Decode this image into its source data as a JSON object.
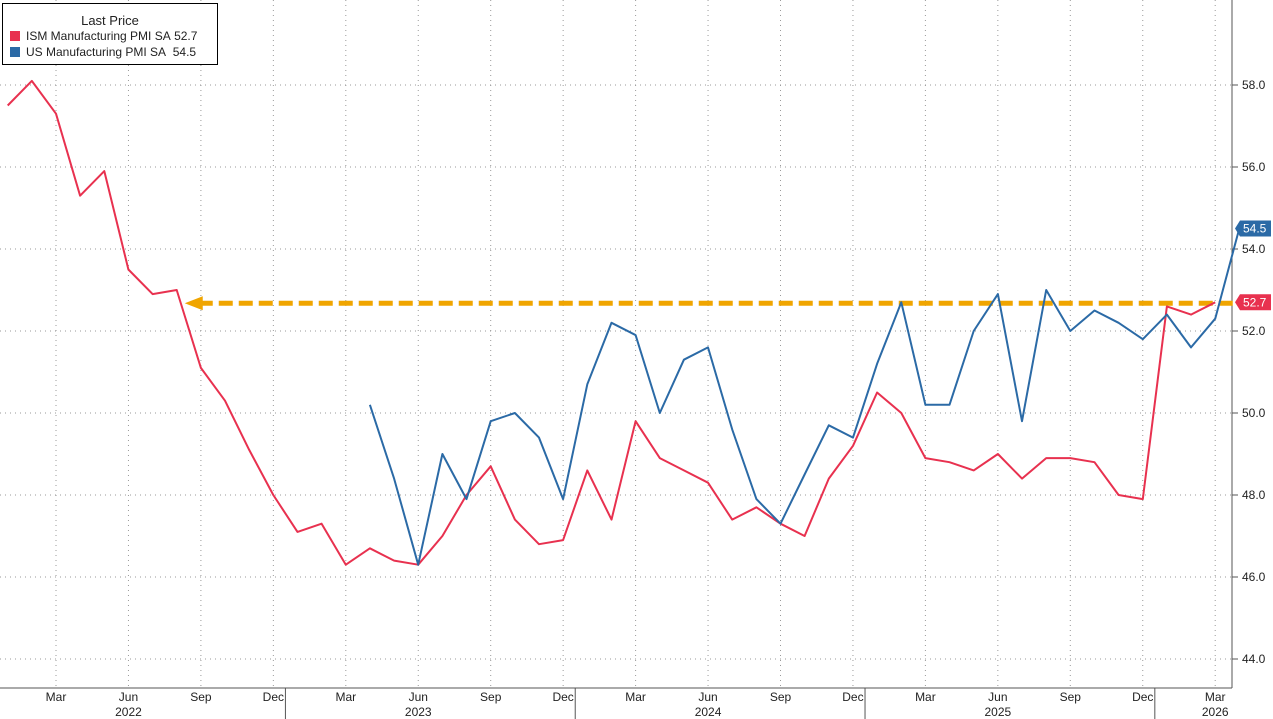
{
  "chart_data": {
    "type": "line",
    "title": "",
    "xlabel": "",
    "ylabel": "",
    "legend": {
      "title": "Last Price",
      "placement": "top-left",
      "entries": [
        {
          "label": "ISM Manufacturing PMI SA",
          "last": "52.7",
          "color": "#e8314f"
        },
        {
          "label": "US Manufacturing PMI SA",
          "last": "54.5",
          "color": "#2b6aa6"
        }
      ]
    },
    "ylim": [
      43.3,
      59.8
    ],
    "y_ticks": [
      "44.0",
      "46.0",
      "48.0",
      "50.0",
      "52.0",
      "54.0",
      "56.0",
      "58.0"
    ],
    "x_range": [
      "2022-01",
      "2026-04"
    ],
    "x_month_ticks": [
      {
        "date": "2022-03",
        "label": "Mar"
      },
      {
        "date": "2022-06",
        "label": "Jun"
      },
      {
        "date": "2022-09",
        "label": "Sep"
      },
      {
        "date": "2022-12",
        "label": "Dec"
      },
      {
        "date": "2023-03",
        "label": "Mar"
      },
      {
        "date": "2023-06",
        "label": "Jun"
      },
      {
        "date": "2023-09",
        "label": "Sep"
      },
      {
        "date": "2023-12",
        "label": "Dec"
      },
      {
        "date": "2024-03",
        "label": "Mar"
      },
      {
        "date": "2024-06",
        "label": "Jun"
      },
      {
        "date": "2024-09",
        "label": "Sep"
      },
      {
        "date": "2024-12",
        "label": "Dec"
      },
      {
        "date": "2025-03",
        "label": "Mar"
      },
      {
        "date": "2025-06",
        "label": "Jun"
      },
      {
        "date": "2025-09",
        "label": "Sep"
      },
      {
        "date": "2025-12",
        "label": "Dec"
      },
      {
        "date": "2026-03",
        "label": "Mar"
      }
    ],
    "x_year_ticks": [
      {
        "date": "2022-06",
        "label": "2022"
      },
      {
        "date": "2023-06",
        "label": "2023"
      },
      {
        "date": "2024-06",
        "label": "2024"
      },
      {
        "date": "2025-06",
        "label": "2025"
      },
      {
        "date": "2026-03",
        "label": "2026"
      }
    ],
    "grid": true,
    "series": [
      {
        "name": "ISM Manufacturing PMI SA",
        "color": "#e8314f",
        "x": [
          "2022-01",
          "2022-02",
          "2022-03",
          "2022-04",
          "2022-05",
          "2022-06",
          "2022-07",
          "2022-08",
          "2022-09",
          "2022-10",
          "2022-11",
          "2022-12",
          "2023-01",
          "2023-02",
          "2023-03",
          "2023-04",
          "2023-05",
          "2023-06",
          "2023-07",
          "2023-08",
          "2023-09",
          "2023-10",
          "2023-11",
          "2023-12",
          "2024-01",
          "2024-02",
          "2024-03",
          "2024-04",
          "2024-05",
          "2024-06",
          "2024-07",
          "2024-08",
          "2024-09",
          "2024-10",
          "2024-11",
          "2024-12",
          "2025-01",
          "2025-02",
          "2025-03",
          "2025-04",
          "2025-05",
          "2025-06",
          "2025-07",
          "2025-08",
          "2025-09",
          "2025-10",
          "2025-11",
          "2025-12",
          "2026-01",
          "2026-02",
          "2026-03"
        ],
        "values": [
          57.5,
          58.1,
          57.3,
          55.3,
          55.9,
          53.5,
          52.9,
          53.0,
          51.1,
          50.3,
          49.1,
          48.0,
          47.1,
          47.3,
          46.3,
          46.7,
          46.4,
          46.3,
          47.0,
          48.0,
          48.7,
          47.4,
          46.8,
          46.9,
          48.6,
          47.4,
          49.8,
          48.9,
          48.6,
          48.3,
          47.4,
          47.7,
          47.3,
          47.0,
          48.4,
          49.2,
          50.5,
          50.0,
          48.9,
          48.8,
          48.6,
          49.0,
          48.4,
          48.9,
          48.9,
          48.8,
          48.0,
          47.9,
          52.6,
          52.4,
          52.7
        ],
        "last_value": "52.7"
      },
      {
        "name": "US Manufacturing PMI SA",
        "color": "#2b6aa6",
        "x": [
          "2023-04",
          "2023-05",
          "2023-06",
          "2023-07",
          "2023-08",
          "2023-09",
          "2023-10",
          "2023-11",
          "2023-12",
          "2024-01",
          "2024-02",
          "2024-03",
          "2024-04",
          "2024-05",
          "2024-06",
          "2024-07",
          "2024-08",
          "2024-09",
          "2024-10",
          "2024-11",
          "2024-12",
          "2025-01",
          "2025-02",
          "2025-03",
          "2025-04",
          "2025-05",
          "2025-06",
          "2025-07",
          "2025-08",
          "2025-09",
          "2025-10",
          "2025-11",
          "2025-12",
          "2026-01",
          "2026-02",
          "2026-03",
          "2026-04"
        ],
        "values": [
          50.2,
          48.4,
          46.3,
          49.0,
          47.9,
          49.8,
          50.0,
          49.4,
          47.9,
          50.7,
          52.2,
          51.9,
          50.0,
          51.3,
          51.6,
          49.6,
          47.9,
          47.3,
          48.5,
          49.7,
          49.4,
          51.2,
          52.7,
          50.2,
          50.2,
          52.0,
          52.9,
          49.8,
          53.0,
          52.0,
          52.5,
          52.2,
          51.8,
          52.4,
          51.6,
          52.3,
          54.5
        ],
        "last_value": "54.5"
      }
    ],
    "reference_line": {
      "value": 52.7,
      "color": "#f0a500",
      "style": "dashed-arrow",
      "from": "2022-08",
      "to": "2026-03"
    }
  }
}
